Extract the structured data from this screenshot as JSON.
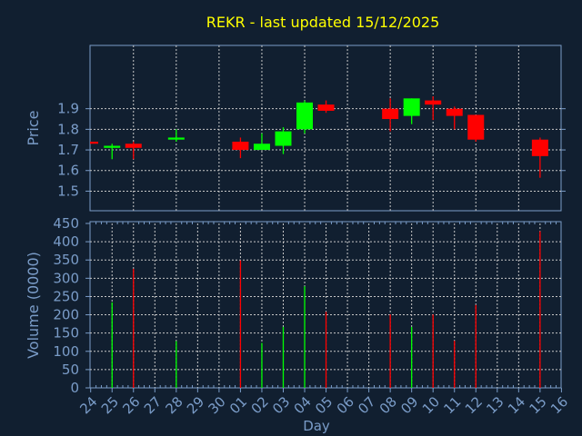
{
  "chart_data": {
    "type": "candlestick",
    "title": "REKR - last updated 15/12/2025",
    "xlabel": "Day",
    "price_panel": {
      "ylabel": "Price",
      "ylim": [
        1.405,
        2.207
      ],
      "yticks": [
        "1.5",
        "1.6",
        "1.7",
        "1.8",
        "1.9"
      ],
      "grid": true
    },
    "volume_panel": {
      "ylabel": "Volume (0000)",
      "ylim": [
        0,
        450
      ],
      "yticks": [
        "0",
        "50",
        "100",
        "150",
        "200",
        "250",
        "300",
        "350",
        "400",
        "450"
      ],
      "grid": true
    },
    "x_tick_labels": [
      "24",
      "25",
      "26",
      "27",
      "28",
      "29",
      "30",
      "01",
      "02",
      "03",
      "04",
      "05",
      "06",
      "07",
      "08",
      "09",
      "10",
      "11",
      "12",
      "13",
      "14",
      "15",
      "16"
    ],
    "candles": [
      {
        "day": "24",
        "open": 1.74,
        "high": 1.74,
        "low": 1.73,
        "close": 1.73,
        "volume": null
      },
      {
        "day": "25",
        "open": 1.71,
        "high": 1.73,
        "low": 1.655,
        "close": 1.72,
        "volume": 234
      },
      {
        "day": "26",
        "open": 1.73,
        "high": 1.74,
        "low": 1.655,
        "close": 1.71,
        "volume": 326
      },
      {
        "day": "28",
        "open": 1.75,
        "high": 1.8,
        "low": 1.74,
        "close": 1.76,
        "volume": 128
      },
      {
        "day": "01",
        "open": 1.74,
        "high": 1.76,
        "low": 1.66,
        "close": 1.7,
        "volume": 349
      },
      {
        "day": "02",
        "open": 1.7,
        "high": 1.78,
        "low": 1.7,
        "close": 1.73,
        "volume": 123
      },
      {
        "day": "03",
        "open": 1.72,
        "high": 1.81,
        "low": 1.68,
        "close": 1.79,
        "volume": 167
      },
      {
        "day": "04",
        "open": 1.8,
        "high": 1.94,
        "low": 1.78,
        "close": 1.93,
        "volume": 278
      },
      {
        "day": "05",
        "open": 1.92,
        "high": 1.94,
        "low": 1.88,
        "close": 1.89,
        "volume": 208
      },
      {
        "day": "08",
        "open": 1.9,
        "high": 1.95,
        "low": 1.79,
        "close": 1.85,
        "volume": 201
      },
      {
        "day": "09",
        "open": 1.865,
        "high": 1.95,
        "low": 1.825,
        "close": 1.95,
        "volume": 167
      },
      {
        "day": "10",
        "open": 1.94,
        "high": 1.96,
        "low": 1.845,
        "close": 1.92,
        "volume": 201
      },
      {
        "day": "11",
        "open": 1.9,
        "high": 1.91,
        "low": 1.8,
        "close": 1.865,
        "volume": 129
      },
      {
        "day": "12",
        "open": 1.87,
        "high": 1.87,
        "low": 1.74,
        "close": 1.75,
        "volume": 227
      },
      {
        "day": "15",
        "open": 1.75,
        "high": 1.76,
        "low": 1.565,
        "close": 1.67,
        "volume": 429
      }
    ],
    "colors": {
      "up": "#00ff00",
      "down": "#ff0000",
      "background": "#111f30",
      "axis": "#7a9cc8",
      "grid": "#c8c8c8",
      "title": "#ffff00"
    }
  }
}
